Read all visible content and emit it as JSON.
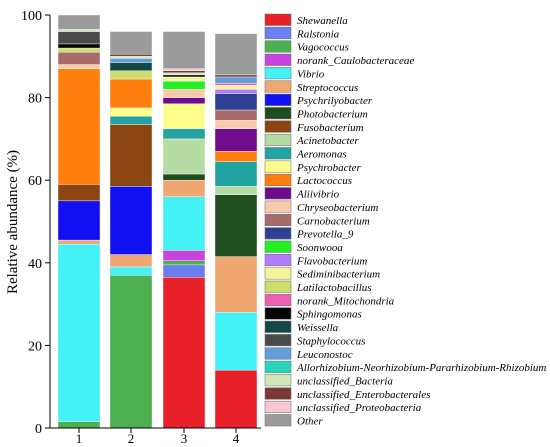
{
  "chart_data": {
    "type": "bar",
    "stacked": true,
    "title": "",
    "xlabel": "",
    "ylabel": "Relative abundance (%)",
    "ylim": [
      0,
      100
    ],
    "yticks": [
      "0",
      "20",
      "40",
      "60",
      "80",
      "100"
    ],
    "categories": [
      "1",
      "2",
      "3",
      "4"
    ],
    "legend_position": "right",
    "series": [
      {
        "name": "Shewanella",
        "color": "#e8202a",
        "values": [
          0,
          0,
          36.5,
          14
        ]
      },
      {
        "name": "Ralstonia",
        "color": "#6a7ff0",
        "values": [
          0,
          0,
          3,
          0
        ]
      },
      {
        "name": "Vagococcus",
        "color": "#4cb050",
        "values": [
          1.5,
          37,
          1,
          0
        ]
      },
      {
        "name": "norank_Caulobacteraceae",
        "color": "#c844e0",
        "values": [
          0,
          0,
          2.5,
          0
        ]
      },
      {
        "name": "Vibrio",
        "color": "#44f2f6",
        "values": [
          43,
          2,
          13,
          14
        ]
      },
      {
        "name": "Streptococcus",
        "color": "#f0a670",
        "values": [
          1,
          3,
          4,
          13.5
        ]
      },
      {
        "name": "Psychrilyobacter",
        "color": "#1010f0",
        "values": [
          9.5,
          16.5,
          0,
          0
        ]
      },
      {
        "name": "Photobacterium",
        "color": "#1f4d1f",
        "values": [
          0,
          0,
          1.5,
          15
        ]
      },
      {
        "name": "Fusobacterium",
        "color": "#8a4510",
        "values": [
          4,
          15,
          0,
          0
        ]
      },
      {
        "name": "Acinetobacter",
        "color": "#b7dca3",
        "values": [
          0,
          0,
          8.5,
          2
        ]
      },
      {
        "name": "Aeromonas",
        "color": "#23a3a3",
        "values": [
          0,
          2,
          2.5,
          6
        ]
      },
      {
        "name": "Psychrobacter",
        "color": "#fefe8a",
        "values": [
          0,
          2,
          6,
          0
        ]
      },
      {
        "name": "Lactococcus",
        "color": "#ff7f0e",
        "values": [
          28,
          7,
          0,
          2.5
        ]
      },
      {
        "name": "Aliivibrio",
        "color": "#6e0c8c",
        "values": [
          0,
          0,
          1.5,
          5.5
        ]
      },
      {
        "name": "Chryseobacterium",
        "color": "#f8cbab",
        "values": [
          1,
          0,
          2,
          2
        ]
      },
      {
        "name": "Carnobacterium",
        "color": "#a96a6a",
        "values": [
          3,
          0,
          0,
          2.5
        ]
      },
      {
        "name": "Prevotella_9",
        "color": "#2f3f94",
        "values": [
          0,
          0,
          0,
          4
        ]
      },
      {
        "name": "Soonwooa",
        "color": "#22f022",
        "values": [
          0,
          0,
          2,
          0
        ]
      },
      {
        "name": "Flavobacterium",
        "color": "#b27cff",
        "values": [
          0,
          0,
          0,
          1
        ]
      },
      {
        "name": "Sediminibacterium",
        "color": "#f4f49a",
        "values": [
          0,
          0,
          1,
          1
        ]
      },
      {
        "name": "Latilactobacillus",
        "color": "#cede6e",
        "values": [
          1,
          2,
          0,
          0
        ]
      },
      {
        "name": "norank_Mitochondria",
        "color": "#f060b0",
        "values": [
          0,
          0,
          0,
          0.5
        ]
      },
      {
        "name": "Sphingomonas",
        "color": "#050505",
        "values": [
          1,
          0,
          0.5,
          0
        ]
      },
      {
        "name": "Weissella",
        "color": "#13474a",
        "values": [
          0,
          2,
          0,
          0
        ]
      },
      {
        "name": "Staphylococcus",
        "color": "#4a4a4a",
        "values": [
          3,
          0,
          0,
          0
        ]
      },
      {
        "name": "Leuconostoc",
        "color": "#5f9ed8",
        "values": [
          0,
          1,
          0,
          1.5
        ]
      },
      {
        "name": "Allorhizobium-Neorhizobium-Pararhizobium-Rhizobium",
        "color": "#27d6b8",
        "values": [
          0,
          0,
          0,
          0
        ]
      },
      {
        "name": "unclassified_Bacteria",
        "color": "#cfe8b8",
        "values": [
          0.5,
          0.5,
          0.5,
          0
        ]
      },
      {
        "name": "unclassified_Enterobacterales",
        "color": "#7a3a3a",
        "values": [
          0,
          0.5,
          0.5,
          0.5
        ]
      },
      {
        "name": "unclassified_Proteobacteria",
        "color": "#f7c8d0",
        "values": [
          0,
          0,
          0.5,
          0
        ]
      },
      {
        "name": "Other",
        "color": "#9b9b9b",
        "values": [
          3.5,
          5.5,
          9,
          10
        ]
      }
    ]
  }
}
